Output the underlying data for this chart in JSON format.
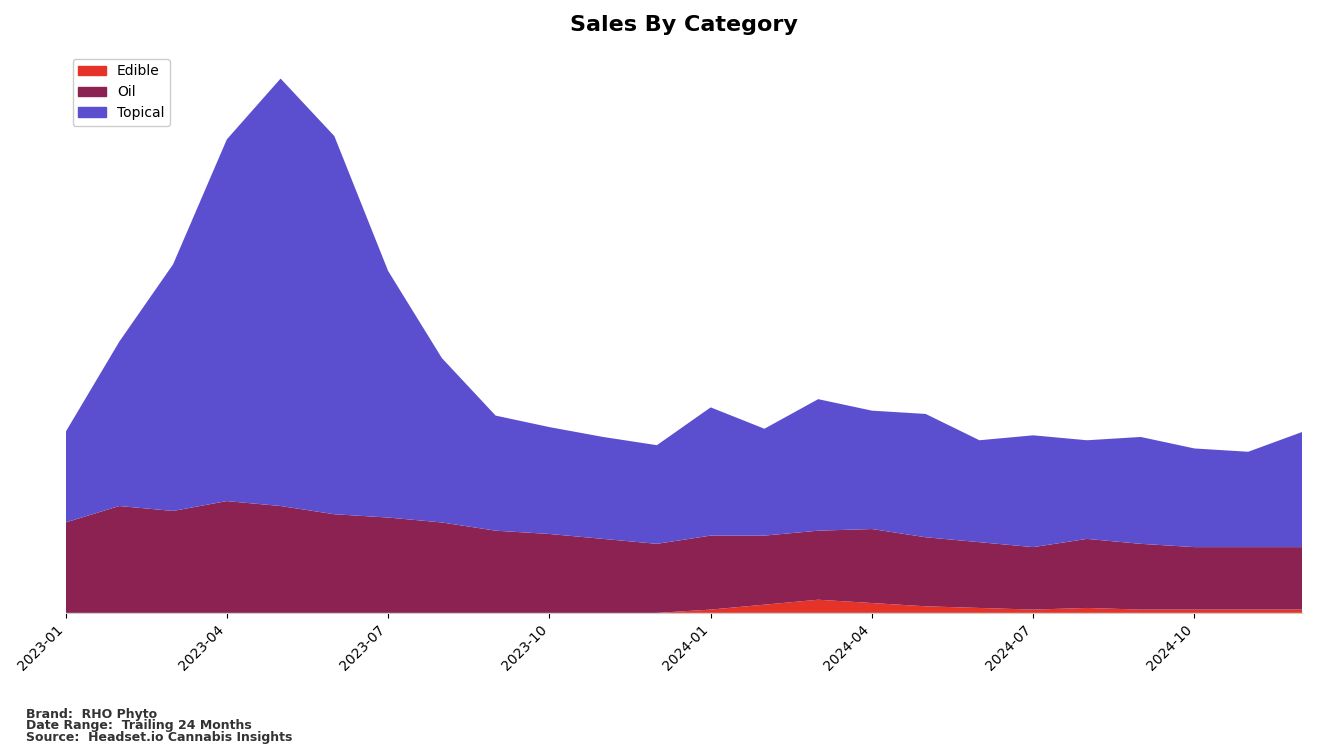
{
  "title": "Sales By Category",
  "title_fontsize": 16,
  "background_color": "#ffffff",
  "categories": [
    "Edible",
    "Oil",
    "Topical"
  ],
  "colors": [
    "#e63329",
    "#8b2252",
    "#5b4fcf"
  ],
  "x_labels": [
    "2023-01",
    "2023-04",
    "2023-07",
    "2023-10",
    "2024-01",
    "2024-04",
    "2024-07",
    "2024-10"
  ],
  "brand": "RHO Phyto",
  "date_range": "Trailing 24 Months",
  "source": "Headset.io Cannabis Insights",
  "x_points": [
    0,
    1,
    2,
    3,
    4,
    5,
    6,
    7,
    8,
    9,
    10,
    11,
    12,
    13,
    14,
    15,
    16,
    17,
    18,
    19,
    20,
    21,
    22,
    23
  ],
  "edible": [
    0,
    0,
    0,
    0,
    0,
    0,
    0,
    0,
    0,
    0,
    0,
    0,
    0.02,
    0.05,
    0.08,
    0.06,
    0.04,
    0.03,
    0.02,
    0.03,
    0.02,
    0.02,
    0.02,
    0.02
  ],
  "oil": [
    0.55,
    0.65,
    0.62,
    0.68,
    0.65,
    0.6,
    0.58,
    0.55,
    0.5,
    0.48,
    0.45,
    0.42,
    0.45,
    0.42,
    0.42,
    0.45,
    0.42,
    0.4,
    0.38,
    0.42,
    0.4,
    0.38,
    0.38,
    0.38
  ],
  "topical": [
    0.55,
    1.0,
    1.5,
    2.2,
    2.6,
    2.3,
    1.5,
    1.0,
    0.7,
    0.65,
    0.62,
    0.6,
    0.78,
    0.65,
    0.8,
    0.72,
    0.75,
    0.62,
    0.68,
    0.6,
    0.65,
    0.6,
    0.58,
    0.7
  ]
}
